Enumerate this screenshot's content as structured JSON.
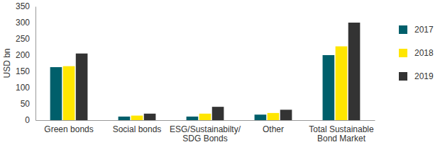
{
  "chart_data": {
    "type": "bar",
    "y_label": "USD bn",
    "categories": [
      "Green bonds",
      "Social bonds",
      "ESG/Sustainabilty/\nSDG Bonds",
      "Other",
      "Total Sustainable\nBond Market"
    ],
    "series": [
      {
        "name": "2017",
        "color": "#005f6b",
        "values": [
          163,
          11,
          11,
          17,
          200
        ]
      },
      {
        "name": "2018",
        "color": "#ffe600",
        "values": [
          166,
          14,
          20,
          22,
          227
        ]
      },
      {
        "name": "2019",
        "color": "#333333",
        "values": [
          205,
          20,
          41,
          32,
          300
        ]
      }
    ],
    "ylim": [
      0,
      350
    ],
    "yticks": [
      0,
      50,
      100,
      150,
      200,
      250,
      300,
      350
    ],
    "grid": false,
    "legend": "right"
  }
}
